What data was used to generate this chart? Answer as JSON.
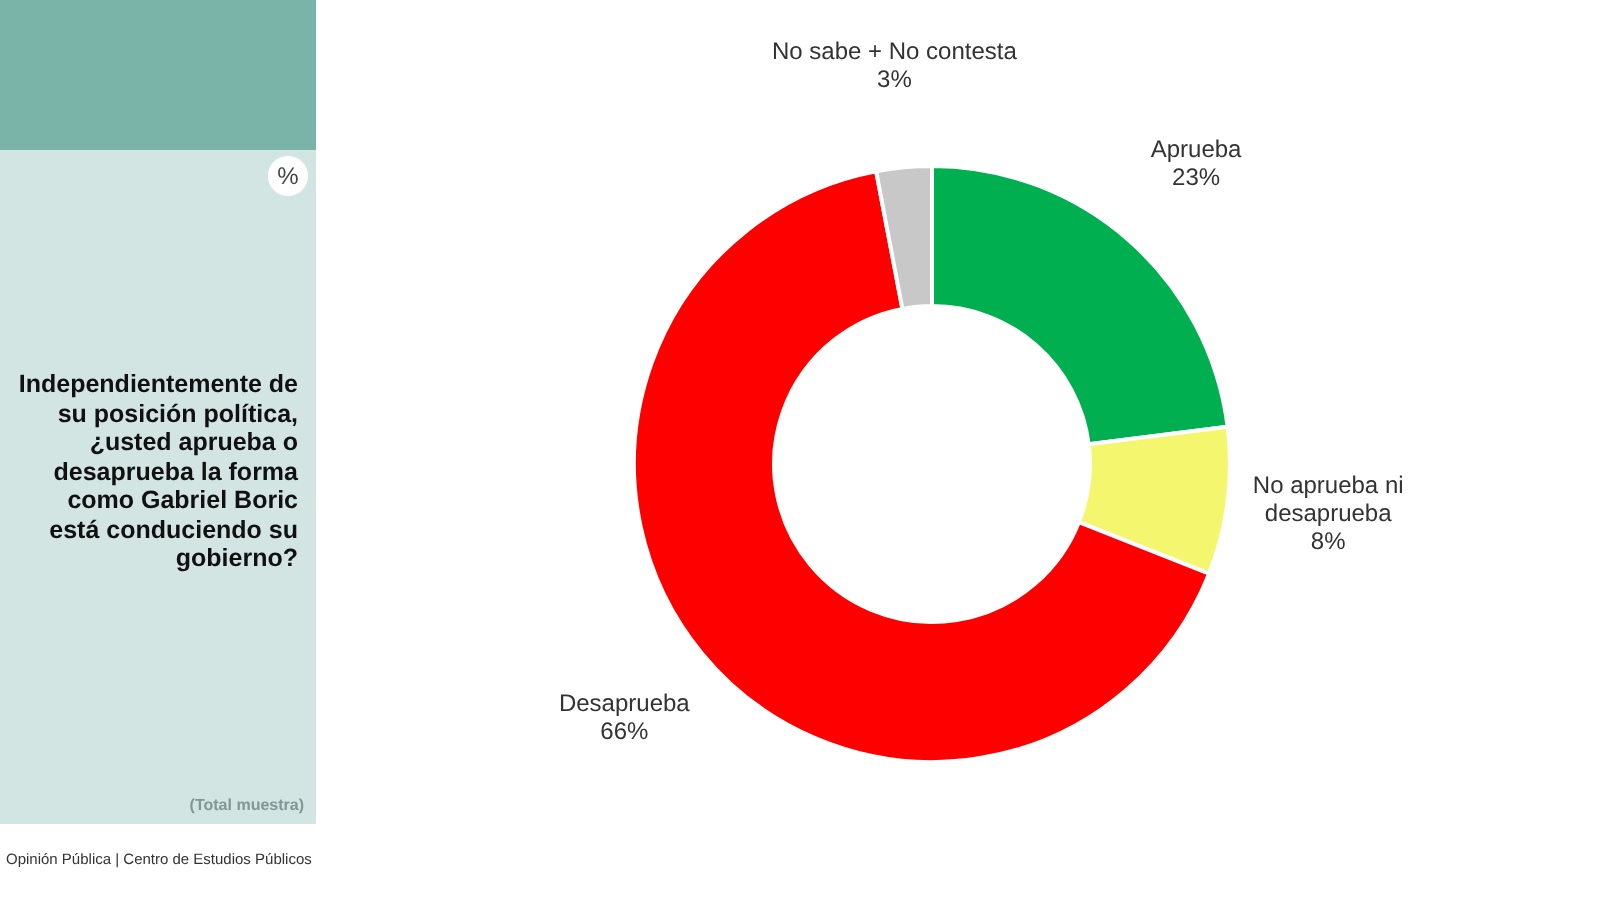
{
  "chart_data": {
    "type": "donut",
    "title": "Independientemente de su posición política, ¿usted aprueba o desaprueba la forma como Gabriel Boric está conduciendo su gobierno?",
    "subtitle": "%",
    "categories": [
      "Aprueba",
      "No aprueba ni desaprueba",
      "Desaprueba",
      "No sabe + No contesta"
    ],
    "values": [
      23,
      8,
      66,
      3
    ],
    "colors": [
      "#00b050",
      "#f4f76e",
      "#ff0000",
      "#c8c8c8"
    ],
    "value_labels": [
      "23%",
      "8%",
      "66%",
      "3%"
    ],
    "legend": false,
    "annotations": [
      "(Total muestra)",
      "Opinión Pública | Centro de Estudios Públicos"
    ]
  }
}
